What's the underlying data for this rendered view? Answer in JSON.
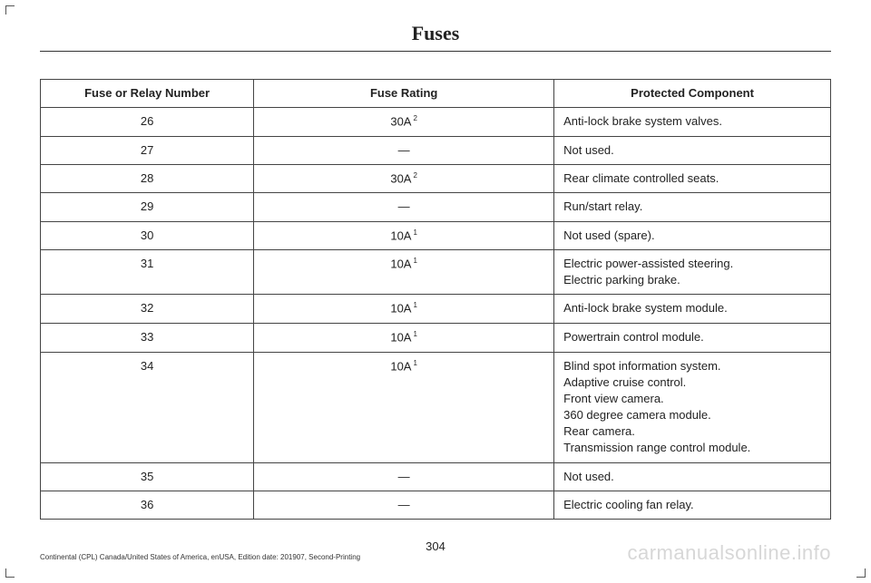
{
  "title": "Fuses",
  "columns": [
    "Fuse or Relay Number",
    "Fuse Rating",
    "Protected Component"
  ],
  "rows": [
    {
      "num": "26",
      "rating": "30A",
      "sup": "2",
      "comp": [
        "Anti-lock brake system valves."
      ]
    },
    {
      "num": "27",
      "rating": "—",
      "sup": "",
      "comp": [
        "Not used."
      ]
    },
    {
      "num": "28",
      "rating": "30A",
      "sup": "2",
      "comp": [
        "Rear climate controlled seats."
      ]
    },
    {
      "num": "29",
      "rating": "—",
      "sup": "",
      "comp": [
        "Run/start relay."
      ]
    },
    {
      "num": "30",
      "rating": "10A",
      "sup": "1",
      "comp": [
        "Not used (spare)."
      ]
    },
    {
      "num": "31",
      "rating": "10A",
      "sup": "1",
      "comp": [
        "Electric power-assisted steering.",
        "Electric parking brake."
      ]
    },
    {
      "num": "32",
      "rating": "10A",
      "sup": "1",
      "comp": [
        "Anti-lock brake system module."
      ]
    },
    {
      "num": "33",
      "rating": "10A",
      "sup": "1",
      "comp": [
        "Powertrain control module."
      ]
    },
    {
      "num": "34",
      "rating": "10A",
      "sup": "1",
      "comp": [
        "Blind spot information system.",
        "Adaptive cruise control.",
        "Front view camera.",
        "360 degree camera module.",
        "Rear camera.",
        "Transmission range control module."
      ]
    },
    {
      "num": "35",
      "rating": "—",
      "sup": "",
      "comp": [
        "Not used."
      ]
    },
    {
      "num": "36",
      "rating": "—",
      "sup": "",
      "comp": [
        "Electric cooling fan relay."
      ]
    }
  ],
  "pagenum": "304",
  "footer": "Continental (CPL) Canada/United States of America, enUSA, Edition date: 201907, Second-Printing",
  "watermark": "carmanualsonline.info"
}
